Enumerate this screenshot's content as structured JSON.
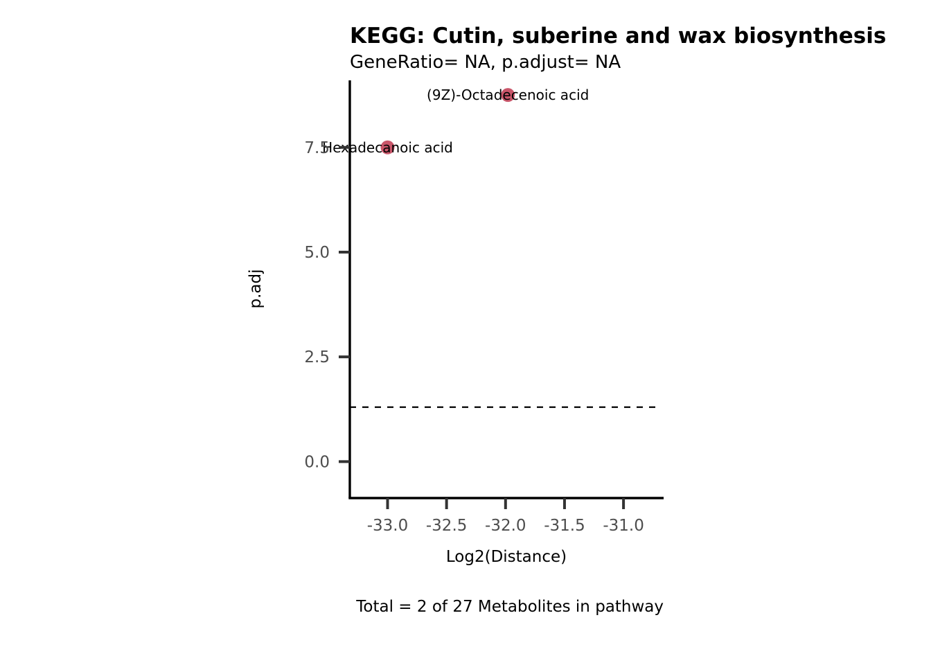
{
  "chart_data": {
    "type": "scatter",
    "title": "KEGG: Cutin, suberine and wax biosynthesis",
    "subtitle": "GeneRatio= NA, p.adjust= NA",
    "xlabel": "Log2(Distance)",
    "ylabel": "p.adj",
    "caption": "Total = 2 of 27 Metabolites in pathway",
    "xlim": [
      -33.32,
      -30.66
    ],
    "ylim": [
      -0.87,
      9.1
    ],
    "xticks": [
      -33.0,
      -32.5,
      -32.0,
      -31.5,
      -31.0
    ],
    "xtick_labels": [
      "-33.0",
      "-32.5",
      "-32.0",
      "-31.5",
      "-31.0"
    ],
    "yticks": [
      0.0,
      2.5,
      5.0,
      7.5
    ],
    "ytick_labels": [
      "0.0",
      "2.5",
      "5.0",
      "7.5"
    ],
    "threshold_line": {
      "y": 1.3,
      "style": "dashed",
      "color": "#000000"
    },
    "grid": false,
    "legend": "none",
    "points": [
      {
        "label": "(9Z)-Octadecenoic acid",
        "x": -31.98,
        "y": 8.75,
        "color": "#c9566a"
      },
      {
        "label": "Hexadecanoic acid",
        "x": -33.0,
        "y": 7.5,
        "color": "#c9566a"
      }
    ]
  }
}
